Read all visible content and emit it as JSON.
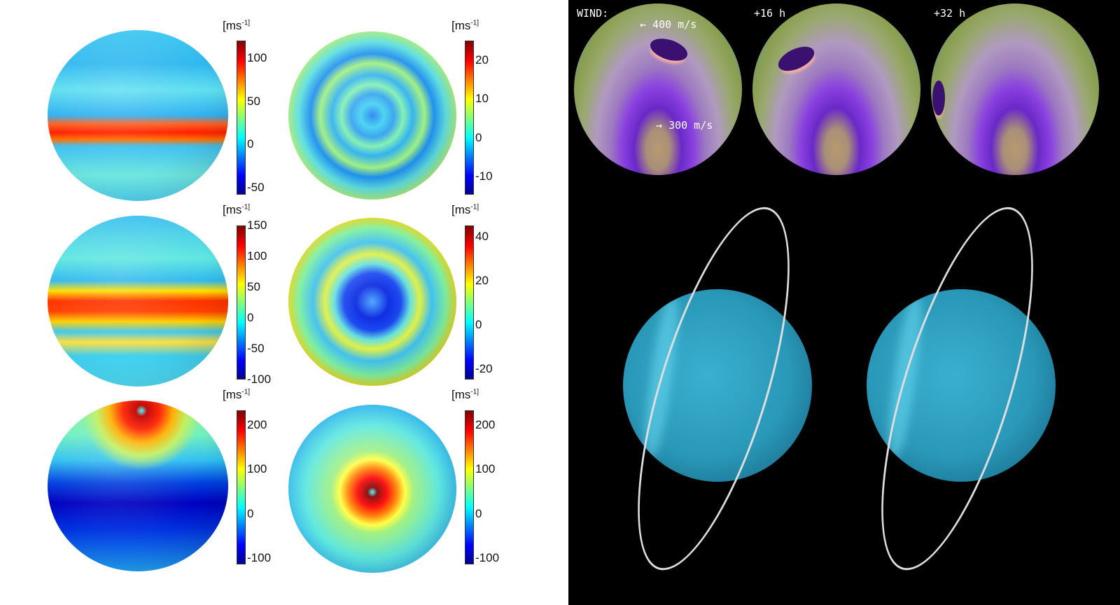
{
  "left_panel": {
    "unit_label": "[ms",
    "unit_exp": "-1]",
    "rows": [
      {
        "left_ticks": [
          "100",
          "50",
          "0",
          "-50"
        ],
        "right_ticks": [
          "20",
          "10",
          "0",
          "-10"
        ]
      },
      {
        "left_ticks": [
          "150",
          "100",
          "50",
          "0",
          "-50",
          "-100"
        ],
        "right_ticks": [
          "40",
          "20",
          "0",
          "-20"
        ]
      },
      {
        "left_ticks": [
          "200",
          "100",
          "0",
          "-100"
        ],
        "right_ticks": [
          "200",
          "100",
          "0",
          "-100"
        ]
      }
    ],
    "colormap": [
      "#00008f",
      "#0000ff",
      "#00ffff",
      "#ffff00",
      "#ff0000",
      "#800000"
    ]
  },
  "right_panel": {
    "wind_label": "WIND:",
    "arrow_left_label": "400 m/s",
    "arrow_right_label": "300 m/s",
    "time_labels": [
      "+16 h",
      "+32 h"
    ]
  }
}
